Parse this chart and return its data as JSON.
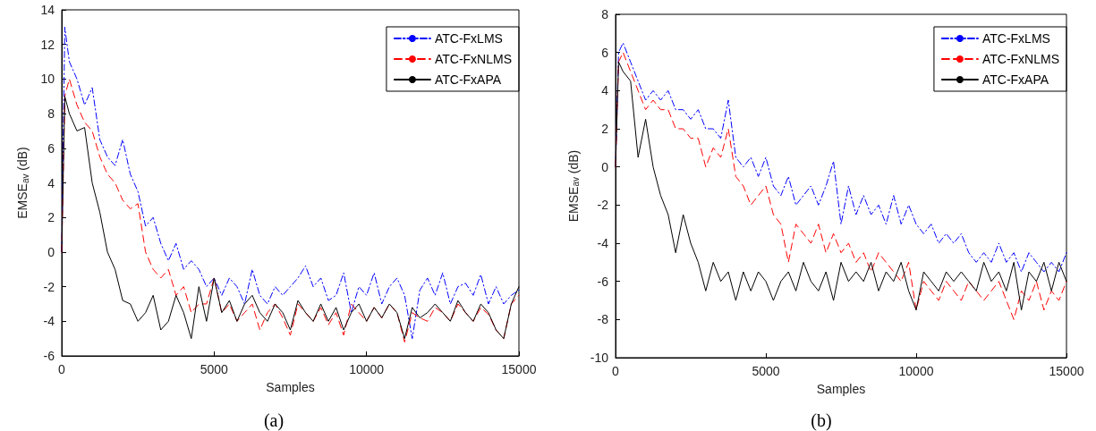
{
  "chart_data": [
    {
      "type": "line",
      "xlabel": "Samples",
      "ylabel": "EMSE$_{av}$ (dB)",
      "annotations": [
        "(a)"
      ],
      "xlim": [
        0,
        15000
      ],
      "xticks": [
        0,
        5000,
        10000,
        15000
      ],
      "ylim": [
        -6,
        14
      ],
      "yticks": [
        -6,
        -4,
        -2,
        0,
        2,
        4,
        6,
        8,
        10,
        12,
        14
      ],
      "grid": false,
      "legend": "top right",
      "marker": "none",
      "x": [
        0,
        100,
        250,
        500,
        750,
        1000,
        1250,
        1500,
        1750,
        2000,
        2250,
        2500,
        2750,
        3000,
        3250,
        3500,
        3750,
        4000,
        4250,
        4500,
        4750,
        5000,
        5250,
        5500,
        5750,
        6000,
        6250,
        6500,
        6750,
        7000,
        7250,
        7500,
        7750,
        8000,
        8250,
        8500,
        8750,
        9000,
        9250,
        9500,
        9750,
        10000,
        10250,
        10500,
        10750,
        11000,
        11250,
        11500,
        11750,
        12000,
        12250,
        12500,
        12750,
        13000,
        13250,
        13500,
        13750,
        14000,
        14250,
        14500,
        14750,
        15000
      ],
      "series": [
        {
          "name": "ATC-FxLMS",
          "color": "#0000ff",
          "line_style": "dashdot",
          "values": [
            0,
            13,
            11,
            10,
            8.5,
            9.5,
            6.5,
            5.5,
            5,
            6.5,
            4.5,
            3.5,
            1.5,
            2,
            0.5,
            -0.5,
            0.5,
            -1,
            -0.5,
            -1,
            -2,
            -1.5,
            -2.5,
            -1.5,
            -2,
            -3,
            -1,
            -2.5,
            -3,
            -2,
            -2.5,
            -2,
            -1.5,
            -0.8,
            -2,
            -1.5,
            -2.8,
            -2.5,
            -1.2,
            -3.5,
            -2,
            -2.5,
            -1.2,
            -3,
            -2,
            -1.5,
            -2.5,
            -5,
            -2.2,
            -1.5,
            -2.5,
            -1.2,
            -3,
            -2,
            -1.8,
            -2.5,
            -1.3,
            -3,
            -2,
            -3,
            -2.5,
            -2.2
          ]
        },
        {
          "name": "ATC-FxNLMS",
          "color": "#ff0000",
          "line_style": "dashed",
          "values": [
            0,
            9,
            10,
            8.5,
            7.5,
            7,
            5.5,
            4.5,
            4,
            3,
            2.5,
            2.8,
            0,
            -1,
            -1.5,
            -1,
            -2.5,
            -2,
            -3.5,
            -3,
            -3,
            -1.5,
            -3.5,
            -3,
            -4,
            -3.5,
            -3,
            -4.5,
            -3.5,
            -3,
            -3.8,
            -4.8,
            -3,
            -3.5,
            -4,
            -3.2,
            -4.2,
            -3.5,
            -4.8,
            -3,
            -3.5,
            -4,
            -3.2,
            -3.8,
            -3,
            -3.5,
            -5.2,
            -3.5,
            -3.8,
            -4,
            -3.2,
            -3.5,
            -4,
            -3,
            -3.5,
            -4,
            -3.2,
            -3.6,
            -4.5,
            -5,
            -3,
            -2.5
          ]
        },
        {
          "name": "ATC-FxAPA",
          "color": "#000000",
          "line_style": "solid",
          "values": [
            0,
            9,
            8,
            7,
            7.2,
            4,
            2.3,
            0,
            -1,
            -2.8,
            -3,
            -4,
            -3.5,
            -2.5,
            -4.5,
            -4,
            -2.5,
            -3.5,
            -5,
            -2,
            -4,
            -1.5,
            -3.5,
            -2.8,
            -4,
            -3,
            -2.5,
            -3.5,
            -4,
            -3,
            -3.5,
            -4.5,
            -2.8,
            -3.5,
            -4,
            -3,
            -4,
            -3.2,
            -4.5,
            -3.5,
            -3,
            -4,
            -3.2,
            -3.8,
            -3,
            -3.5,
            -5,
            -3.2,
            -3.8,
            -3.5,
            -3,
            -3.5,
            -4,
            -2.8,
            -3.5,
            -4,
            -3,
            -3.5,
            -4.5,
            -5,
            -3,
            -2
          ]
        }
      ]
    },
    {
      "type": "line",
      "xlabel": "Samples",
      "ylabel": "EMSE$_{av}$ (dB)",
      "annotations": [
        "(b)"
      ],
      "xlim": [
        0,
        15000
      ],
      "xticks": [
        0,
        5000,
        10000,
        15000
      ],
      "ylim": [
        -10,
        8
      ],
      "yticks": [
        -10,
        -8,
        -6,
        -4,
        -2,
        0,
        2,
        4,
        6,
        8
      ],
      "grid": false,
      "legend": "top right",
      "marker": "none",
      "x": [
        0,
        100,
        250,
        500,
        750,
        1000,
        1250,
        1500,
        1750,
        2000,
        2250,
        2500,
        2750,
        3000,
        3250,
        3500,
        3750,
        4000,
        4250,
        4500,
        4750,
        5000,
        5250,
        5500,
        5750,
        6000,
        6250,
        6500,
        6750,
        7000,
        7250,
        7500,
        7750,
        8000,
        8250,
        8500,
        8750,
        9000,
        9250,
        9500,
        9750,
        10000,
        10250,
        10500,
        10750,
        11000,
        11250,
        11500,
        11750,
        12000,
        12250,
        12500,
        12750,
        13000,
        13250,
        13500,
        13750,
        14000,
        14250,
        14500,
        14750,
        15000
      ],
      "series": [
        {
          "name": "ATC-FxLMS",
          "color": "#0000ff",
          "line_style": "dashdot",
          "values": [
            0,
            6,
            6.5,
            5.5,
            4.5,
            3.5,
            4,
            3.5,
            4,
            3,
            3,
            2.5,
            3,
            2,
            2,
            1.5,
            3.5,
            0.5,
            0,
            0.5,
            -0.5,
            0.5,
            -1,
            -1.5,
            -0.5,
            -2,
            -1.5,
            -1,
            -2,
            -1,
            0.3,
            -3,
            -1,
            -2.5,
            -1.5,
            -2.5,
            -2,
            -3,
            -1.5,
            -3,
            -2,
            -3,
            -3.5,
            -3,
            -4,
            -3.5,
            -4,
            -3.5,
            -4.5,
            -5,
            -4.5,
            -5,
            -4,
            -5,
            -4.5,
            -5.5,
            -4.5,
            -5,
            -5.5,
            -5,
            -5.5,
            -4.5
          ]
        },
        {
          "name": "ATC-FxNLMS",
          "color": "#ff0000",
          "line_style": "dashed",
          "values": [
            0,
            5.5,
            6,
            5,
            4,
            3,
            3.5,
            3,
            3,
            2,
            2,
            1.5,
            1.5,
            0,
            1,
            0.5,
            2,
            -0.5,
            -1,
            -2,
            -1.5,
            -1,
            -2.5,
            -3,
            -5,
            -3,
            -3.5,
            -4,
            -3,
            -4.5,
            -3.5,
            -4.5,
            -4,
            -5,
            -4.5,
            -5.5,
            -4.5,
            -5,
            -5.5,
            -6,
            -5,
            -7.5,
            -6,
            -6.5,
            -7,
            -6,
            -6.5,
            -7,
            -6,
            -6.5,
            -7,
            -6.5,
            -6,
            -7,
            -8,
            -6.5,
            -7,
            -6,
            -7.5,
            -6.5,
            -7,
            -6
          ]
        },
        {
          "name": "ATC-FxAPA",
          "color": "#000000",
          "line_style": "solid",
          "values": [
            0,
            5.5,
            5,
            4.5,
            0.5,
            2.5,
            0,
            -1.5,
            -2.5,
            -4.5,
            -2.5,
            -4,
            -5,
            -6.5,
            -5,
            -6,
            -5.5,
            -7,
            -5.5,
            -6.5,
            -5.5,
            -6,
            -7,
            -6,
            -5.5,
            -6.5,
            -5,
            -6,
            -6.5,
            -5.5,
            -7,
            -5,
            -6,
            -5.5,
            -6,
            -5,
            -6.5,
            -5.5,
            -6,
            -5,
            -6.5,
            -7.5,
            -5.5,
            -6,
            -6.5,
            -5.5,
            -6,
            -5.5,
            -6,
            -6.5,
            -5,
            -6,
            -5.5,
            -6.5,
            -5,
            -7.5,
            -5.5,
            -6,
            -5,
            -6.5,
            -5,
            -6
          ]
        }
      ]
    }
  ]
}
